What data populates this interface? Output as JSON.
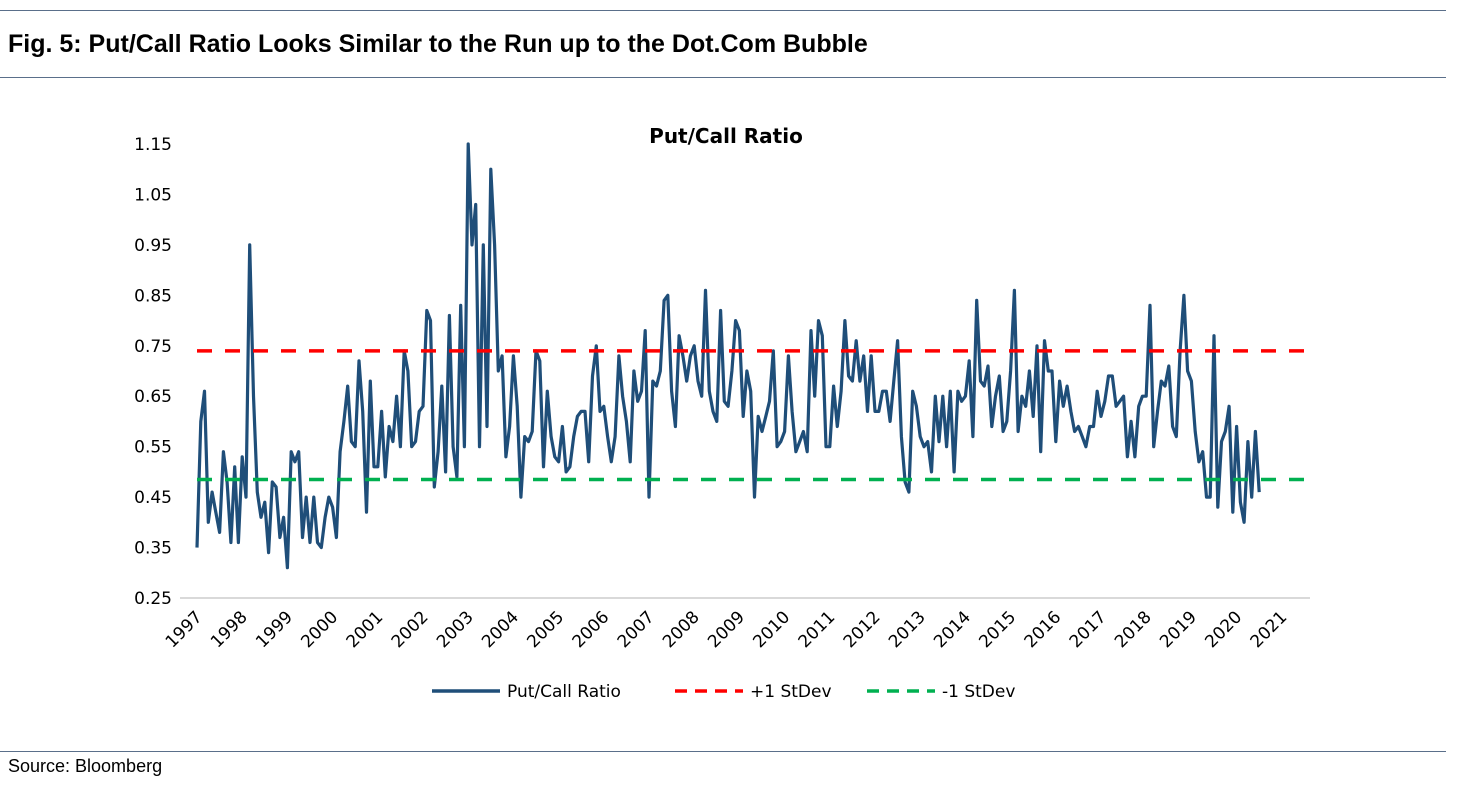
{
  "header": {
    "title": "Fig. 5: Put/Call Ratio Looks Similar to the Run up to the Dot.Com Bubble"
  },
  "footer": {
    "source": "Source: Bloomberg"
  },
  "chart_data": {
    "type": "line",
    "title": "Put/Call Ratio",
    "xlabel": "",
    "ylabel": "",
    "x_frequency": "monthly",
    "x_start": "1997-01",
    "x_ticks": [
      "1997",
      "1998",
      "1999",
      "2000",
      "2001",
      "2002",
      "2003",
      "2004",
      "2005",
      "2006",
      "2007",
      "2008",
      "2009",
      "2010",
      "2011",
      "2012",
      "2013",
      "2014",
      "2015",
      "2016",
      "2017",
      "2018",
      "2019",
      "2020",
      "2021"
    ],
    "y_ticks": [
      "0.25",
      "0.35",
      "0.45",
      "0.55",
      "0.65",
      "0.75",
      "0.85",
      "0.95",
      "1.05",
      "1.15"
    ],
    "ylim": [
      0.25,
      1.15
    ],
    "grid": false,
    "legend_position": "bottom",
    "series": [
      {
        "name": "Put/Call Ratio",
        "color": "#1f4e79",
        "style": "solid",
        "values": [
          0.35,
          0.6,
          0.66,
          0.4,
          0.46,
          0.42,
          0.38,
          0.54,
          0.48,
          0.36,
          0.51,
          0.36,
          0.53,
          0.45,
          0.95,
          0.65,
          0.46,
          0.41,
          0.44,
          0.34,
          0.48,
          0.47,
          0.37,
          0.41,
          0.31,
          0.54,
          0.52,
          0.54,
          0.37,
          0.45,
          0.36,
          0.45,
          0.36,
          0.35,
          0.41,
          0.45,
          0.43,
          0.37,
          0.54,
          0.6,
          0.67,
          0.56,
          0.55,
          0.72,
          0.62,
          0.42,
          0.68,
          0.51,
          0.51,
          0.62,
          0.49,
          0.59,
          0.56,
          0.65,
          0.55,
          0.74,
          0.7,
          0.55,
          0.56,
          0.62,
          0.63,
          0.82,
          0.8,
          0.47,
          0.54,
          0.67,
          0.5,
          0.81,
          0.55,
          0.49,
          0.83,
          0.55,
          1.15,
          0.95,
          1.03,
          0.55,
          0.95,
          0.59,
          1.1,
          0.95,
          0.7,
          0.73,
          0.53,
          0.59,
          0.73,
          0.63,
          0.45,
          0.57,
          0.56,
          0.58,
          0.74,
          0.72,
          0.51,
          0.66,
          0.57,
          0.53,
          0.52,
          0.59,
          0.5,
          0.51,
          0.57,
          0.61,
          0.62,
          0.62,
          0.52,
          0.69,
          0.75,
          0.62,
          0.63,
          0.57,
          0.52,
          0.57,
          0.73,
          0.65,
          0.6,
          0.52,
          0.7,
          0.64,
          0.66,
          0.78,
          0.45,
          0.68,
          0.67,
          0.7,
          0.84,
          0.85,
          0.66,
          0.59,
          0.77,
          0.73,
          0.68,
          0.73,
          0.75,
          0.68,
          0.65,
          0.86,
          0.66,
          0.62,
          0.6,
          0.82,
          0.64,
          0.63,
          0.7,
          0.8,
          0.78,
          0.61,
          0.7,
          0.66,
          0.45,
          0.61,
          0.58,
          0.61,
          0.64,
          0.74,
          0.55,
          0.56,
          0.58,
          0.73,
          0.62,
          0.54,
          0.56,
          0.58,
          0.54,
          0.78,
          0.65,
          0.8,
          0.77,
          0.55,
          0.55,
          0.67,
          0.59,
          0.66,
          0.8,
          0.69,
          0.68,
          0.76,
          0.68,
          0.73,
          0.62,
          0.73,
          0.62,
          0.62,
          0.66,
          0.66,
          0.6,
          0.68,
          0.76,
          0.57,
          0.48,
          0.46,
          0.66,
          0.63,
          0.57,
          0.55,
          0.56,
          0.5,
          0.65,
          0.56,
          0.65,
          0.55,
          0.66,
          0.5,
          0.66,
          0.64,
          0.65,
          0.72,
          0.57,
          0.84,
          0.68,
          0.67,
          0.71,
          0.59,
          0.65,
          0.69,
          0.58,
          0.6,
          0.7,
          0.86,
          0.58,
          0.65,
          0.63,
          0.7,
          0.61,
          0.75,
          0.54,
          0.76,
          0.7,
          0.7,
          0.56,
          0.68,
          0.63,
          0.67,
          0.62,
          0.58,
          0.59,
          0.57,
          0.55,
          0.59,
          0.59,
          0.66,
          0.61,
          0.64,
          0.69,
          0.69,
          0.63,
          0.64,
          0.65,
          0.53,
          0.6,
          0.53,
          0.63,
          0.65,
          0.65,
          0.83,
          0.55,
          0.62,
          0.68,
          0.67,
          0.71,
          0.59,
          0.57,
          0.74,
          0.85,
          0.7,
          0.68,
          0.58,
          0.52,
          0.54,
          0.45,
          0.45,
          0.77,
          0.43,
          0.56,
          0.58,
          0.63,
          0.42,
          0.59,
          0.44,
          0.4,
          0.56,
          0.45,
          0.58,
          0.46
        ]
      },
      {
        "name": "+1 StDev",
        "color": "#ff0000",
        "style": "dashed",
        "value": 0.74
      },
      {
        "name": "-1 StDev",
        "color": "#00b050",
        "style": "dashed",
        "value": 0.485
      }
    ]
  }
}
